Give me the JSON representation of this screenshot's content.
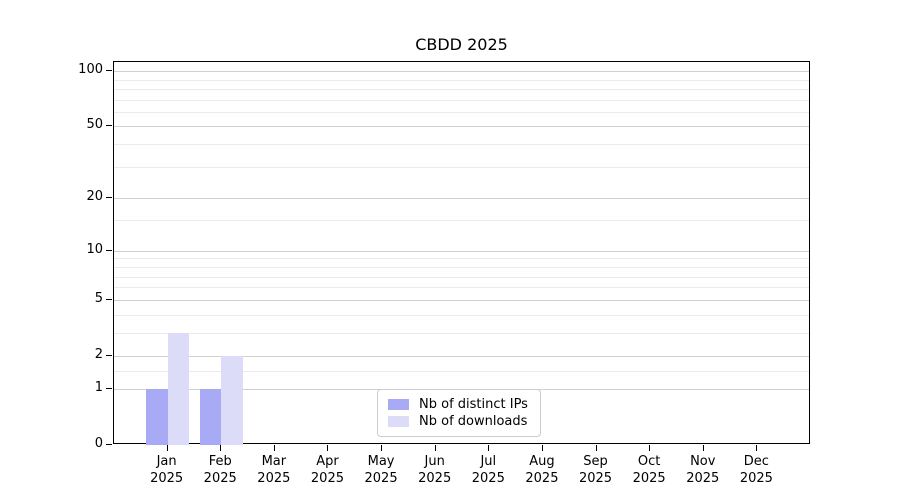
{
  "chart_data": {
    "type": "bar",
    "title": "CBDD 2025",
    "categories": [
      "Jan",
      "Feb",
      "Mar",
      "Apr",
      "May",
      "Jun",
      "Jul",
      "Aug",
      "Sep",
      "Oct",
      "Nov",
      "Dec"
    ],
    "year_label": "2025",
    "series": [
      {
        "name": "Nb of distinct IPs",
        "color": "#a9aaf6",
        "values": [
          1,
          1,
          0,
          0,
          0,
          0,
          0,
          0,
          0,
          0,
          0,
          0
        ]
      },
      {
        "name": "Nb of downloads",
        "color": "#dcdcf8",
        "values": [
          3,
          2,
          0,
          0,
          0,
          0,
          0,
          0,
          0,
          0,
          0,
          0
        ]
      }
    ],
    "y_axis": {
      "scale": "log10(1+y)",
      "tick_values": [
        0,
        1,
        2,
        5,
        10,
        20,
        50,
        100
      ],
      "tick_labels": [
        "0",
        "1",
        "2",
        "5",
        "10",
        "20",
        "50",
        "100"
      ],
      "minor_gridline_values": [
        1.5,
        3,
        4,
        6,
        7,
        8,
        9,
        15,
        30,
        40,
        60,
        70,
        80,
        90
      ],
      "ylim": [
        0,
        112
      ]
    },
    "legend": {
      "position": "lower center",
      "entries": [
        "Nb of distinct IPs",
        "Nb of downloads"
      ]
    },
    "grid": true,
    "colors": {
      "background": "#ffffff",
      "axis": "#000000",
      "text": "#000000",
      "major_grid": "#d0d0d0",
      "minor_grid": "#ebebeb",
      "legend_border": "#cccccc"
    }
  }
}
